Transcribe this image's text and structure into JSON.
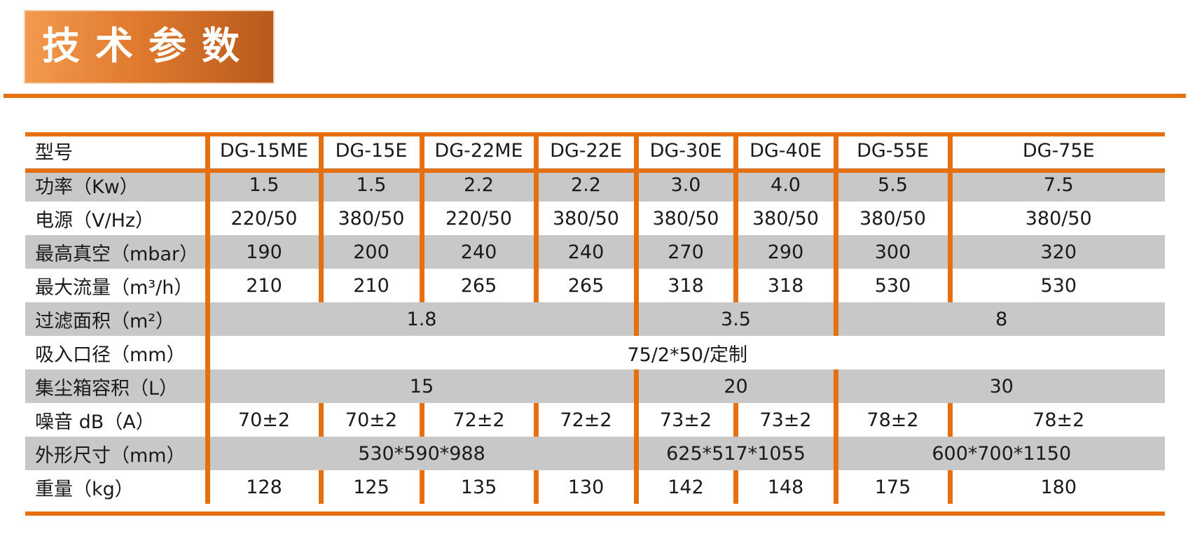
{
  "heading": {
    "title": "技术参数"
  },
  "colors": {
    "accent": "#e4700f",
    "row_gray": "#c8c8c8"
  },
  "table": {
    "header": {
      "label": "型号",
      "models": [
        "DG-15ME",
        "DG-15E",
        "DG-22ME",
        "DG-22E",
        "DG-30E",
        "DG-40E",
        "DG-55E",
        "DG-75E"
      ]
    },
    "power": {
      "label": "功率（Kw）",
      "values": [
        "1.5",
        "1.5",
        "2.2",
        "2.2",
        "3.0",
        "4.0",
        "5.5",
        "7.5"
      ]
    },
    "supply": {
      "label": "电源（V/Hz）",
      "values": [
        "220/50",
        "380/50",
        "220/50",
        "380/50",
        "380/50",
        "380/50",
        "380/50",
        "380/50"
      ]
    },
    "vacuum": {
      "label": "最高真空（mbar）",
      "values": [
        "190",
        "200",
        "240",
        "240",
        "270",
        "290",
        "300",
        "320"
      ]
    },
    "flow": {
      "label": "最大流量（m³/h）",
      "values": [
        "210",
        "210",
        "265",
        "265",
        "318",
        "318",
        "530",
        "530"
      ]
    },
    "filter_area": {
      "label": "过滤面积（m²）",
      "values": [
        "1.8",
        "3.5",
        "8"
      ]
    },
    "inlet": {
      "label": "吸入口径（mm）",
      "value": "75/2*50/定制"
    },
    "bin_volume": {
      "label": "集尘箱容积（L）",
      "values": [
        "15",
        "20",
        "30"
      ]
    },
    "noise": {
      "label": "噪音 dB（A）",
      "values": [
        "70±2",
        "70±2",
        "72±2",
        "72±2",
        "73±2",
        "73±2",
        "78±2",
        "78±2"
      ]
    },
    "dimensions": {
      "label": "外形尺寸（mm）",
      "values": [
        "530*590*988",
        "625*517*1055",
        "600*700*1150"
      ]
    },
    "weight": {
      "label": "重量（kg）",
      "values": [
        "128",
        "125",
        "135",
        "130",
        "142",
        "148",
        "175",
        "180"
      ]
    }
  }
}
